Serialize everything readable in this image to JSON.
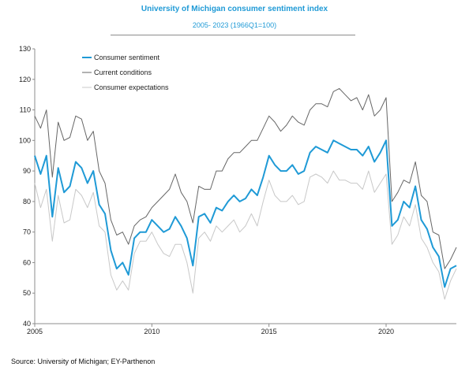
{
  "chart_data": {
    "type": "line",
    "title": "University of Michigan consumer sentiment index",
    "subtitle": "2005- 2023 (1966Q1=100)",
    "xlabel": "",
    "ylabel": "",
    "xlim": [
      2005,
      2023
    ],
    "ylim": [
      40,
      130
    ],
    "x_ticks": [
      "2005",
      "2010",
      "2015",
      "2020"
    ],
    "y_ticks": [
      "40",
      "50",
      "60",
      "70",
      "80",
      "90",
      "100",
      "110",
      "120",
      "130"
    ],
    "grid": false,
    "legend_position": "top-left",
    "x": [
      2005.0,
      2005.25,
      2005.5,
      2005.75,
      2006.0,
      2006.25,
      2006.5,
      2006.75,
      2007.0,
      2007.25,
      2007.5,
      2007.75,
      2008.0,
      2008.25,
      2008.5,
      2008.75,
      2009.0,
      2009.25,
      2009.5,
      2009.75,
      2010.0,
      2010.25,
      2010.5,
      2010.75,
      2011.0,
      2011.25,
      2011.5,
      2011.75,
      2012.0,
      2012.25,
      2012.5,
      2012.75,
      2013.0,
      2013.25,
      2013.5,
      2013.75,
      2014.0,
      2014.25,
      2014.5,
      2014.75,
      2015.0,
      2015.25,
      2015.5,
      2015.75,
      2016.0,
      2016.25,
      2016.5,
      2016.75,
      2017.0,
      2017.25,
      2017.5,
      2017.75,
      2018.0,
      2018.25,
      2018.5,
      2018.75,
      2019.0,
      2019.25,
      2019.5,
      2019.75,
      2020.0,
      2020.25,
      2020.5,
      2020.75,
      2021.0,
      2021.25,
      2021.5,
      2021.75,
      2022.0,
      2022.25,
      2022.5,
      2022.75,
      2023.0
    ],
    "series": [
      {
        "name": "Consumer sentiment",
        "color": "#1f9ad6",
        "values": [
          95,
          89,
          95,
          75,
          91,
          83,
          85,
          93,
          91,
          86,
          90,
          79,
          76,
          64,
          58,
          60,
          56,
          68,
          70,
          70,
          74,
          72,
          70,
          71,
          75,
          72,
          68,
          59,
          75,
          76,
          73,
          78,
          77,
          80,
          82,
          80,
          81,
          84,
          82,
          88,
          95,
          92,
          90,
          90,
          92,
          89,
          90,
          96,
          98,
          97,
          96,
          100,
          99,
          98,
          97,
          97,
          95,
          98,
          93,
          96,
          100,
          72,
          74,
          80,
          78,
          85,
          74,
          71,
          65,
          62,
          52,
          58,
          59
        ]
      },
      {
        "name": "Current conditions",
        "color": "#666666",
        "values": [
          108,
          104,
          110,
          88,
          106,
          100,
          101,
          108,
          107,
          100,
          103,
          90,
          86,
          74,
          69,
          70,
          66,
          72,
          74,
          75,
          78,
          80,
          82,
          84,
          89,
          83,
          80,
          73,
          85,
          84,
          84,
          90,
          90,
          94,
          96,
          96,
          98,
          100,
          100,
          104,
          108,
          106,
          103,
          105,
          108,
          106,
          105,
          110,
          112,
          112,
          111,
          116,
          117,
          115,
          113,
          114,
          110,
          115,
          108,
          110,
          114,
          80,
          83,
          87,
          86,
          93,
          82,
          80,
          70,
          69,
          58,
          61,
          65
        ]
      },
      {
        "name": "Consumer expectations",
        "color": "#c8c8c8",
        "values": [
          86,
          78,
          84,
          67,
          82,
          73,
          74,
          84,
          82,
          78,
          83,
          72,
          70,
          56,
          51,
          54,
          51,
          63,
          67,
          67,
          70,
          66,
          63,
          62,
          66,
          66,
          60,
          50,
          68,
          70,
          67,
          72,
          70,
          72,
          74,
          70,
          72,
          76,
          72,
          80,
          87,
          82,
          80,
          80,
          82,
          79,
          80,
          88,
          89,
          88,
          86,
          90,
          87,
          87,
          86,
          86,
          84,
          90,
          83,
          86,
          89,
          66,
          69,
          75,
          72,
          79,
          68,
          65,
          60,
          57,
          48,
          54,
          58
        ]
      }
    ],
    "source": "Source: University of Michigan; EY-Parthenon"
  }
}
